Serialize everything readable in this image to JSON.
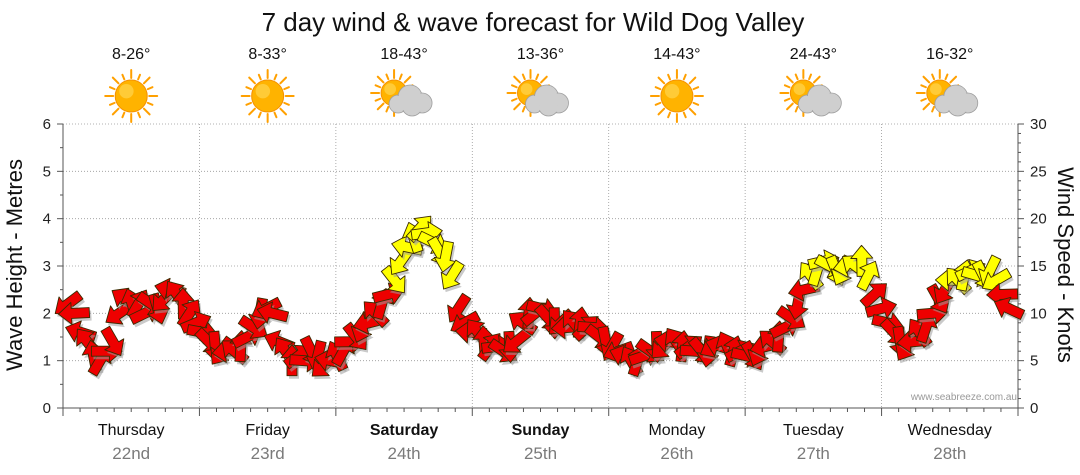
{
  "chart_data": {
    "type": "line",
    "title": "7 day wind & wave forecast for Wild Dog Valley",
    "ylabel_left": "Wave Height - Metres",
    "ylabel_right": "Wind Speed - Knots",
    "ylim_left": [
      0,
      6
    ],
    "ylim_right": [
      0,
      30
    ],
    "yticks_left": [
      "0",
      "1",
      "2",
      "3",
      "4",
      "5",
      "6"
    ],
    "yticks_right": [
      "0",
      "5",
      "10",
      "15",
      "20",
      "25",
      "30"
    ],
    "grid": true,
    "credit": "www.seabreeze.com.au",
    "colors": {
      "calm": "#ee0000",
      "breezy": "#ffff00",
      "sun": "#ffb300",
      "cloud": "#cfcfcf",
      "grid": "#999999"
    },
    "days": [
      {
        "name": "Thursday",
        "date": "22nd",
        "bold": false,
        "range": "8-26°",
        "weather": "sun-icon"
      },
      {
        "name": "Friday",
        "date": "23rd",
        "bold": false,
        "range": "8-33°",
        "weather": "sun-icon"
      },
      {
        "name": "Saturday",
        "date": "24th",
        "bold": true,
        "range": "18-43°",
        "weather": "partly-cloudy-icon"
      },
      {
        "name": "Sunday",
        "date": "25th",
        "bold": true,
        "range": "13-36°",
        "weather": "partly-cloudy-icon"
      },
      {
        "name": "Monday",
        "date": "26th",
        "bold": false,
        "range": "14-43°",
        "weather": "sun-icon"
      },
      {
        "name": "Tuesday",
        "date": "27th",
        "bold": false,
        "range": "24-43°",
        "weather": "partly-cloudy-icon"
      },
      {
        "name": "Wednesday",
        "date": "28th",
        "bold": false,
        "range": "16-32°",
        "weather": "partly-cloudy-icon"
      }
    ],
    "wind_knots": [
      11,
      10,
      8,
      7,
      5.5,
      5,
      6,
      7,
      10,
      11.5,
      11,
      11,
      10,
      11,
      10.5,
      11.5,
      12.5,
      12,
      11,
      10,
      9,
      8,
      7,
      6.5,
      6,
      6,
      6,
      6.5,
      7.5,
      8.5,
      10,
      10.5,
      10,
      7,
      6,
      5,
      5.5,
      5,
      6,
      5.5,
      4.5,
      5,
      5.5,
      6,
      7,
      7.5,
      8.5,
      9,
      10,
      11,
      12,
      13.5,
      15.5,
      17,
      18,
      19,
      18.5,
      17.5,
      16.5,
      16,
      14,
      10.5,
      9,
      8,
      8,
      7,
      6.5,
      6.5,
      6,
      6.5,
      7,
      9,
      10,
      10,
      10.5,
      9.5,
      9,
      9,
      8.5,
      9,
      9,
      8.5,
      8.5,
      7.5,
      7,
      6.5,
      6,
      5.5,
      5,
      5,
      5.5,
      6,
      6.5,
      6.5,
      7,
      7,
      6.5,
      6.5,
      6,
      6,
      6,
      6.5,
      6.5,
      6.5,
      6,
      6,
      5.5,
      5.5,
      6,
      6.5,
      7,
      7.5,
      8.5,
      9.5,
      11,
      12.5,
      14,
      14.5,
      15.5,
      15,
      14.5,
      14.5,
      15,
      15,
      15.5,
      14,
      12,
      10.5,
      9,
      8,
      7,
      6.5,
      7,
      8,
      8.5,
      10,
      11.5,
      12.5,
      13.5,
      13.5,
      14,
      14.5,
      14,
      14,
      14.5,
      13.5,
      12,
      10.5
    ]
  }
}
